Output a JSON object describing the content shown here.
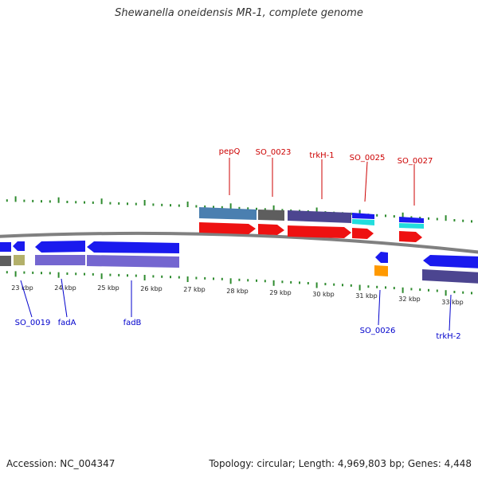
{
  "title": "Shewanella oneidensis MR-1, complete genome",
  "footer": {
    "accession": "Accession: NC_004347",
    "stats": "Topology: circular; Length: 4,969,803 bp; Genes: 4,448"
  },
  "scale": {
    "labels": [
      "23 kbp",
      "24 kbp",
      "25 kbp",
      "26 kbp",
      "27 kbp",
      "28 kbp",
      "29 kbp",
      "30 kbp",
      "31 kbp",
      "32 kbp",
      "33 kbp"
    ],
    "tick_color": "#2e8b2e"
  },
  "colors": {
    "label_top": "#cc0000",
    "label_bottom": "#0000cc",
    "backbone": "#808080",
    "gene_blue": "#1a1aee",
    "gene_red": "#ee1111",
    "cog_steelblue": "#4a7fb0",
    "cog_gray": "#5e5e5e",
    "cog_purple": "#4c4590",
    "cog_lavender": "#7466d0",
    "cog_cyan": "#22dddd",
    "cog_olive": "#b3b06a",
    "cog_orange": "#ff9900"
  },
  "labels_top": [
    "pepQ",
    "SO_0023",
    "trkH-1",
    "SO_0025",
    "SO_0027"
  ],
  "labels_bottom": [
    "SO_0019",
    "fadA",
    "fadB",
    "SO_0026",
    "trkH-2"
  ]
}
